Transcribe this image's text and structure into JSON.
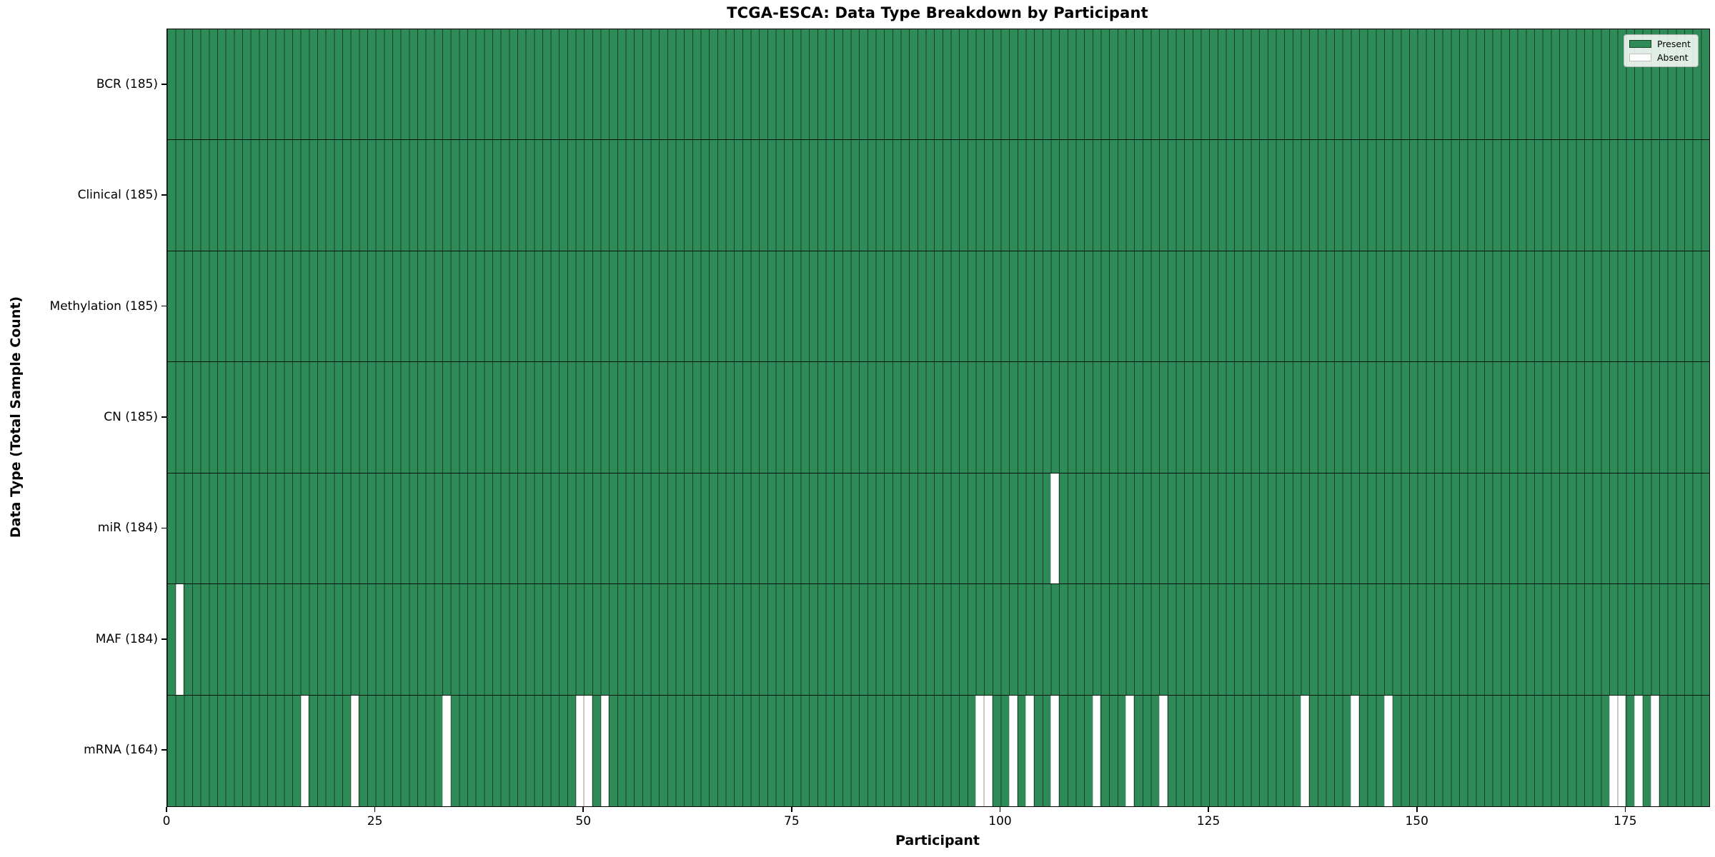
{
  "chart_data": {
    "type": "heatmap",
    "title": "TCGA-ESCA: Data Type Breakdown by Participant",
    "xlabel": "Participant",
    "ylabel": "Data Type (Total Sample Count)",
    "n_participants": 185,
    "x_ticks": [
      0,
      25,
      50,
      75,
      100,
      125,
      150,
      175
    ],
    "rows": [
      {
        "label": "BCR (185)",
        "data_type": "BCR",
        "total": 185,
        "absent_participants": []
      },
      {
        "label": "Clinical (185)",
        "data_type": "Clinical",
        "total": 185,
        "absent_participants": []
      },
      {
        "label": "Methylation (185)",
        "data_type": "Methylation",
        "total": 185,
        "absent_participants": []
      },
      {
        "label": "CN (185)",
        "data_type": "CN",
        "total": 185,
        "absent_participants": []
      },
      {
        "label": "miR (184)",
        "data_type": "miR",
        "total": 184,
        "absent_participants": [
          106
        ]
      },
      {
        "label": "MAF (184)",
        "data_type": "MAF",
        "total": 184,
        "absent_participants": [
          1
        ]
      },
      {
        "label": "mRNA (164)",
        "data_type": "mRNA",
        "total": 164,
        "absent_participants": [
          16,
          22,
          33,
          49,
          50,
          52,
          97,
          98,
          101,
          103,
          106,
          111,
          115,
          119,
          136,
          142,
          146,
          173,
          174,
          176,
          178
        ]
      }
    ],
    "legend": {
      "position": "upper right",
      "entries": [
        {
          "label": "Present",
          "color": "#2e8b57"
        },
        {
          "label": "Absent",
          "color": "#ffffff"
        }
      ]
    },
    "colors": {
      "present": "#2e8b57",
      "absent": "#ffffff",
      "bar_edge": "#1c3527",
      "row_separator": "#111111",
      "spine": "#000000"
    },
    "layout": {
      "grid": "per-bar-edges",
      "legend_position": "upper right",
      "x_range": [
        0,
        185
      ]
    }
  }
}
